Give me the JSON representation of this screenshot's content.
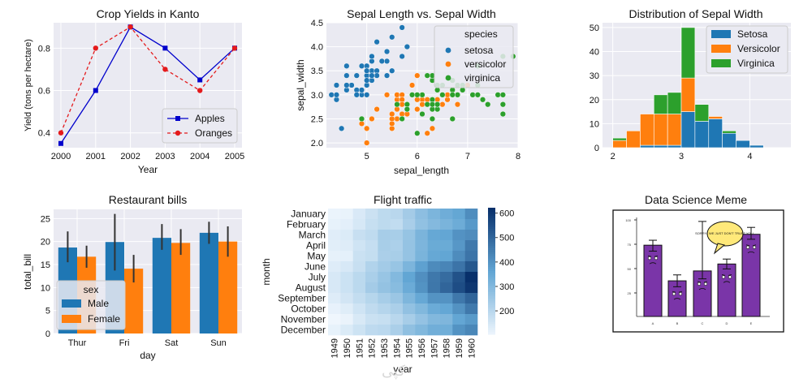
{
  "chart_data": [
    {
      "id": "crop",
      "type": "line",
      "title": "Crop Yields in Kanto",
      "xlabel": "Year",
      "ylabel": "Yield (tons per hectare)",
      "x": [
        2000,
        2001,
        2002,
        2003,
        2004,
        2005
      ],
      "xticks": [
        "2000",
        "2001",
        "2002",
        "2003",
        "2004",
        "2005"
      ],
      "yticks": [
        "0.4",
        "0.6",
        "0.8"
      ],
      "ylim": [
        0.33,
        0.92
      ],
      "series": [
        {
          "name": "Apples",
          "values": [
            0.35,
            0.6,
            0.9,
            0.8,
            0.65,
            0.8
          ],
          "color": "#0000cc",
          "style": "solid",
          "marker": "square"
        },
        {
          "name": "Oranges",
          "values": [
            0.4,
            0.8,
            0.9,
            0.7,
            0.6,
            0.8
          ],
          "color": "#e41a1c",
          "style": "dashed",
          "marker": "circle"
        }
      ],
      "legend": "lower-right"
    },
    {
      "id": "sepal",
      "type": "scatter",
      "title": "Sepal Length vs. Sepal Width",
      "xlabel": "sepal_length",
      "ylabel": "sepal_width",
      "xlim": [
        4.2,
        8.0
      ],
      "ylim": [
        1.9,
        4.5
      ],
      "xticks": [
        "5",
        "6",
        "7",
        "8"
      ],
      "yticks": [
        "2.0",
        "2.5",
        "3.0",
        "3.5",
        "4.0",
        "4.5"
      ],
      "legend_title": "species",
      "legend": "top-right",
      "series": [
        {
          "name": "setosa",
          "color": "#1f77b4",
          "points": [
            [
              5.1,
              3.5
            ],
            [
              4.9,
              3.0
            ],
            [
              4.7,
              3.2
            ],
            [
              4.6,
              3.1
            ],
            [
              5.0,
              3.6
            ],
            [
              5.4,
              3.9
            ],
            [
              4.6,
              3.4
            ],
            [
              5.0,
              3.4
            ],
            [
              4.4,
              2.9
            ],
            [
              4.9,
              3.1
            ],
            [
              5.4,
              3.7
            ],
            [
              4.8,
              3.4
            ],
            [
              4.8,
              3.0
            ],
            [
              4.3,
              3.0
            ],
            [
              5.8,
              4.0
            ],
            [
              5.7,
              4.4
            ],
            [
              5.4,
              3.9
            ],
            [
              5.1,
              3.5
            ],
            [
              5.7,
              3.8
            ],
            [
              5.1,
              3.8
            ],
            [
              5.4,
              3.4
            ],
            [
              5.1,
              3.7
            ],
            [
              4.6,
              3.6
            ],
            [
              5.1,
              3.3
            ],
            [
              4.8,
              3.4
            ],
            [
              5.0,
              3.0
            ],
            [
              5.0,
              3.4
            ],
            [
              5.2,
              3.5
            ],
            [
              5.2,
              3.4
            ],
            [
              4.7,
              3.2
            ],
            [
              4.8,
              3.1
            ],
            [
              5.4,
              3.4
            ],
            [
              5.2,
              4.1
            ],
            [
              5.5,
              4.2
            ],
            [
              4.9,
              3.1
            ],
            [
              5.0,
              3.2
            ],
            [
              5.5,
              3.5
            ],
            [
              4.9,
              3.6
            ],
            [
              4.4,
              3.0
            ],
            [
              5.1,
              3.4
            ],
            [
              5.0,
              3.5
            ],
            [
              4.5,
              2.3
            ],
            [
              4.4,
              3.2
            ],
            [
              5.0,
              3.5
            ],
            [
              5.1,
              3.8
            ],
            [
              4.8,
              3.0
            ],
            [
              5.1,
              3.8
            ],
            [
              4.6,
              3.2
            ],
            [
              5.3,
              3.7
            ],
            [
              5.0,
              3.3
            ]
          ]
        },
        {
          "name": "versicolor",
          "color": "#ff7f0e",
          "points": [
            [
              7.0,
              3.2
            ],
            [
              6.4,
              3.2
            ],
            [
              6.9,
              3.1
            ],
            [
              5.5,
              2.3
            ],
            [
              6.5,
              2.8
            ],
            [
              5.7,
              2.8
            ],
            [
              6.3,
              3.3
            ],
            [
              4.9,
              2.4
            ],
            [
              6.6,
              2.9
            ],
            [
              5.2,
              2.7
            ],
            [
              5.0,
              2.0
            ],
            [
              5.9,
              3.0
            ],
            [
              6.0,
              2.2
            ],
            [
              6.1,
              2.9
            ],
            [
              5.6,
              2.9
            ],
            [
              6.7,
              3.1
            ],
            [
              5.6,
              3.0
            ],
            [
              5.8,
              2.7
            ],
            [
              6.2,
              2.2
            ],
            [
              5.6,
              2.5
            ],
            [
              5.9,
              3.2
            ],
            [
              6.1,
              2.8
            ],
            [
              6.3,
              2.5
            ],
            [
              6.1,
              2.8
            ],
            [
              6.4,
              2.9
            ],
            [
              6.6,
              3.0
            ],
            [
              6.8,
              2.8
            ],
            [
              6.7,
              3.0
            ],
            [
              6.0,
              2.9
            ],
            [
              5.7,
              2.6
            ],
            [
              5.5,
              2.4
            ],
            [
              5.5,
              2.4
            ],
            [
              5.8,
              2.7
            ],
            [
              6.0,
              2.7
            ],
            [
              5.4,
              3.0
            ],
            [
              6.0,
              3.4
            ],
            [
              6.7,
              3.1
            ],
            [
              6.3,
              2.3
            ],
            [
              5.6,
              3.0
            ],
            [
              5.5,
              2.5
            ],
            [
              5.5,
              2.6
            ],
            [
              6.1,
              3.0
            ],
            [
              5.8,
              2.6
            ],
            [
              5.0,
              2.3
            ],
            [
              5.6,
              2.7
            ],
            [
              5.7,
              3.0
            ],
            [
              5.7,
              2.9
            ],
            [
              6.2,
              2.9
            ],
            [
              5.1,
              2.5
            ],
            [
              5.7,
              2.8
            ]
          ]
        },
        {
          "name": "virginica",
          "color": "#2ca02c",
          "points": [
            [
              6.3,
              3.3
            ],
            [
              5.8,
              2.7
            ],
            [
              7.1,
              3.0
            ],
            [
              6.3,
              2.9
            ],
            [
              6.5,
              3.0
            ],
            [
              7.6,
              3.0
            ],
            [
              4.9,
              2.5
            ],
            [
              7.3,
              2.9
            ],
            [
              6.7,
              2.5
            ],
            [
              7.2,
              3.6
            ],
            [
              6.5,
              3.2
            ],
            [
              6.4,
              2.7
            ],
            [
              6.8,
              3.0
            ],
            [
              5.7,
              2.5
            ],
            [
              5.8,
              2.8
            ],
            [
              6.4,
              3.2
            ],
            [
              6.5,
              3.0
            ],
            [
              7.7,
              3.8
            ],
            [
              7.7,
              2.6
            ],
            [
              6.0,
              2.2
            ],
            [
              6.9,
              3.2
            ],
            [
              5.6,
              2.8
            ],
            [
              7.7,
              2.8
            ],
            [
              6.3,
              2.7
            ],
            [
              6.7,
              3.3
            ],
            [
              7.2,
              3.2
            ],
            [
              6.2,
              2.8
            ],
            [
              6.1,
              3.0
            ],
            [
              6.4,
              2.8
            ],
            [
              7.2,
              3.0
            ],
            [
              7.4,
              2.8
            ],
            [
              7.9,
              3.8
            ],
            [
              6.4,
              2.8
            ],
            [
              6.3,
              2.8
            ],
            [
              6.1,
              2.6
            ],
            [
              7.7,
              3.0
            ],
            [
              6.3,
              3.4
            ],
            [
              6.4,
              3.1
            ],
            [
              6.0,
              3.0
            ],
            [
              6.9,
              3.1
            ],
            [
              6.7,
              3.1
            ],
            [
              6.9,
              3.1
            ],
            [
              5.8,
              2.7
            ],
            [
              6.8,
              3.2
            ],
            [
              6.7,
              3.3
            ],
            [
              6.7,
              3.0
            ],
            [
              6.3,
              2.5
            ],
            [
              6.5,
              3.0
            ],
            [
              6.2,
              3.4
            ],
            [
              5.9,
              3.0
            ]
          ]
        }
      ]
    },
    {
      "id": "hist",
      "type": "bar",
      "title": "Distribution of Sepal Width",
      "xlim": [
        1.85,
        4.6
      ],
      "ylim": [
        0,
        52
      ],
      "xticks": [
        2,
        3,
        4
      ],
      "yticks": [
        0,
        10,
        20,
        30,
        40,
        50
      ],
      "bin_edges": [
        2.0,
        2.2,
        2.4,
        2.6,
        2.8,
        3.0,
        3.2,
        3.4,
        3.6,
        3.8,
        4.0,
        4.2,
        4.4
      ],
      "legend": "top-right",
      "series": [
        {
          "name": "Setosa",
          "color": "#1f77b4",
          "values": [
            0,
            0,
            1,
            1,
            1,
            15,
            11,
            12,
            6,
            3,
            1,
            0
          ]
        },
        {
          "name": "Versicolor",
          "color": "#ff7f0e",
          "values": [
            3,
            7,
            13,
            13,
            13,
            14,
            0,
            1,
            0,
            0,
            0,
            0
          ]
        },
        {
          "name": "Virginica",
          "color": "#2ca02c",
          "values": [
            1,
            0,
            0,
            8,
            9,
            21,
            7,
            0,
            1,
            0,
            0,
            0
          ]
        }
      ]
    },
    {
      "id": "tips",
      "type": "bar",
      "title": "Restaurant bills",
      "xlabel": "day",
      "ylabel": "total_bill",
      "categories": [
        "Thur",
        "Fri",
        "Sat",
        "Sun"
      ],
      "ylim": [
        0,
        27
      ],
      "yticks": [
        0,
        5,
        10,
        15,
        20,
        25
      ],
      "legend_title": "sex",
      "legend": "lower-left",
      "series": [
        {
          "name": "Male",
          "color": "#1f77b4",
          "values": [
            18.7,
            19.9,
            20.8,
            21.9
          ],
          "err_low": [
            15.5,
            13.7,
            18.2,
            19.5
          ],
          "err_high": [
            22.2,
            26.0,
            23.8,
            24.3
          ]
        },
        {
          "name": "Female",
          "color": "#ff7f0e",
          "values": [
            16.7,
            14.1,
            19.7,
            20.0
          ],
          "err_low": [
            14.3,
            11.1,
            17.1,
            16.7
          ],
          "err_high": [
            19.1,
            17.1,
            22.7,
            23.3
          ]
        }
      ]
    },
    {
      "id": "flights",
      "type": "heatmap",
      "title": "Flight traffic",
      "xlabel": "year",
      "ylabel": "month",
      "columns": [
        "1949",
        "1950",
        "1951",
        "1952",
        "1953",
        "1954",
        "1955",
        "1956",
        "1957",
        "1958",
        "1959",
        "1960"
      ],
      "rows": [
        "January",
        "February",
        "March",
        "April",
        "May",
        "June",
        "July",
        "August",
        "September",
        "October",
        "November",
        "December"
      ],
      "values": [
        [
          112,
          115,
          145,
          171,
          196,
          204,
          242,
          284,
          315,
          340,
          360,
          417
        ],
        [
          118,
          126,
          150,
          180,
          196,
          188,
          233,
          277,
          301,
          318,
          342,
          391
        ],
        [
          132,
          141,
          178,
          193,
          236,
          235,
          267,
          317,
          356,
          362,
          406,
          419
        ],
        [
          129,
          135,
          163,
          181,
          235,
          227,
          269,
          313,
          348,
          348,
          396,
          461
        ],
        [
          121,
          125,
          172,
          183,
          229,
          234,
          270,
          318,
          355,
          363,
          420,
          472
        ],
        [
          135,
          149,
          178,
          218,
          243,
          264,
          315,
          374,
          422,
          435,
          472,
          535
        ],
        [
          148,
          170,
          199,
          230,
          264,
          302,
          364,
          413,
          465,
          491,
          548,
          622
        ],
        [
          148,
          170,
          199,
          242,
          272,
          293,
          347,
          405,
          467,
          505,
          559,
          606
        ],
        [
          136,
          158,
          184,
          209,
          237,
          259,
          312,
          355,
          404,
          404,
          463,
          508
        ],
        [
          119,
          133,
          162,
          191,
          211,
          229,
          274,
          306,
          347,
          359,
          407,
          461
        ],
        [
          104,
          114,
          146,
          172,
          180,
          203,
          237,
          271,
          305,
          310,
          362,
          390
        ],
        [
          118,
          140,
          166,
          194,
          201,
          229,
          278,
          306,
          336,
          337,
          405,
          432
        ]
      ],
      "vmin": 104,
      "vmax": 622,
      "colorbar_ticks": [
        200,
        300,
        400,
        500,
        600
      ]
    }
  ],
  "meme": {
    "title": "Data Science Meme",
    "bubble": "SORRY.. WE JUST DON'T TRUST YOU..",
    "xticks": [
      "A",
      "B",
      "C",
      "D",
      "E"
    ],
    "bar_color": "#7a35a8"
  },
  "watermark": "کپی"
}
